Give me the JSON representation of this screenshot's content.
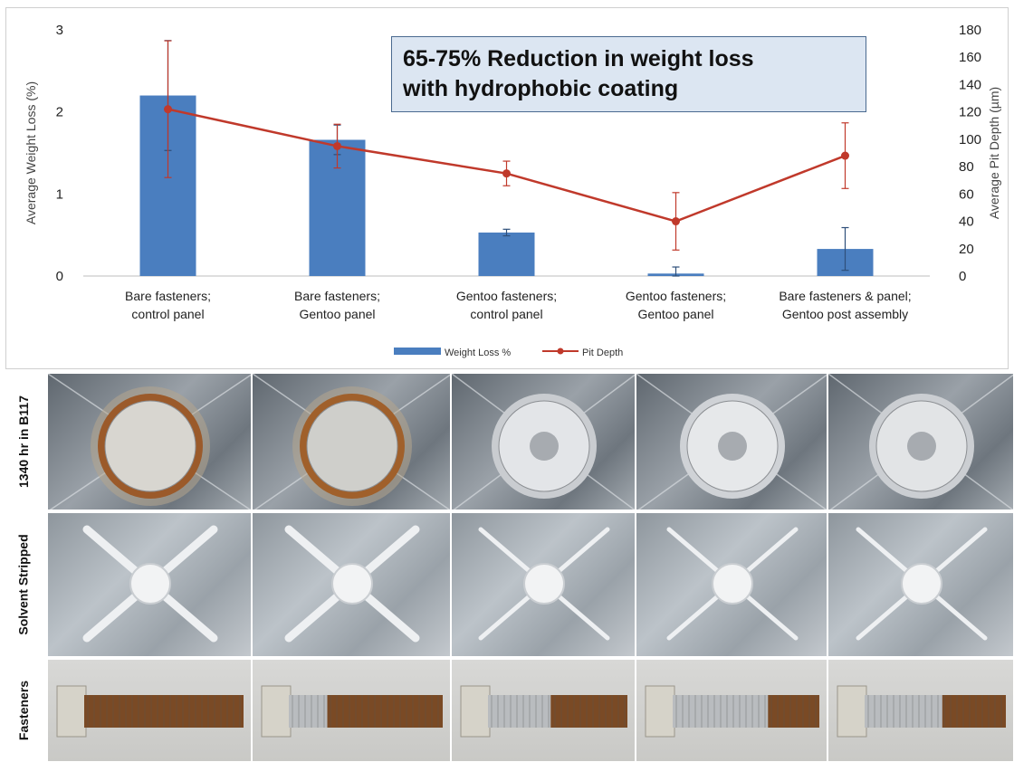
{
  "chart_data": {
    "type": "bar",
    "title": "",
    "callout": [
      "65-75% Reduction in weight loss",
      "with hydrophobic coating"
    ],
    "categories": [
      [
        "Bare fasteners;",
        "control panel"
      ],
      [
        "Bare fasteners;",
        "Gentoo panel"
      ],
      [
        "Gentoo fasteners;",
        "control panel"
      ],
      [
        "Gentoo fasteners;",
        "Gentoo panel"
      ],
      [
        "Bare fasteners & panel;",
        "Gentoo post assembly"
      ]
    ],
    "ylabel": "Average Weight Loss (%)",
    "y2label": "Average Pit Depth (µm)",
    "ylim": [
      0,
      3
    ],
    "yticks": [
      "0",
      "1",
      "2",
      "3"
    ],
    "y2lim": [
      0,
      180
    ],
    "y2ticks": [
      "0",
      "20",
      "40",
      "60",
      "80",
      "100",
      "120",
      "140",
      "160",
      "180"
    ],
    "grid": false,
    "legend_position": "bottom-center",
    "series": [
      {
        "name": "Weight Loss %",
        "type": "bar",
        "axis": "left",
        "color": "#4a7ebf",
        "values": [
          2.2,
          1.66,
          0.53,
          0.03,
          0.33
        ],
        "error": [
          0.67,
          0.18,
          0.04,
          0.08,
          0.26
        ]
      },
      {
        "name": "Pit Depth",
        "type": "line",
        "axis": "right",
        "color": "#c0392b",
        "values": [
          122,
          95,
          75,
          40,
          88
        ],
        "error": [
          50,
          16,
          9,
          21,
          24
        ]
      }
    ]
  },
  "photos": {
    "row_labels": [
      "1340 hr  in  B117",
      "Solvent Stripped",
      "Fasteners"
    ]
  }
}
